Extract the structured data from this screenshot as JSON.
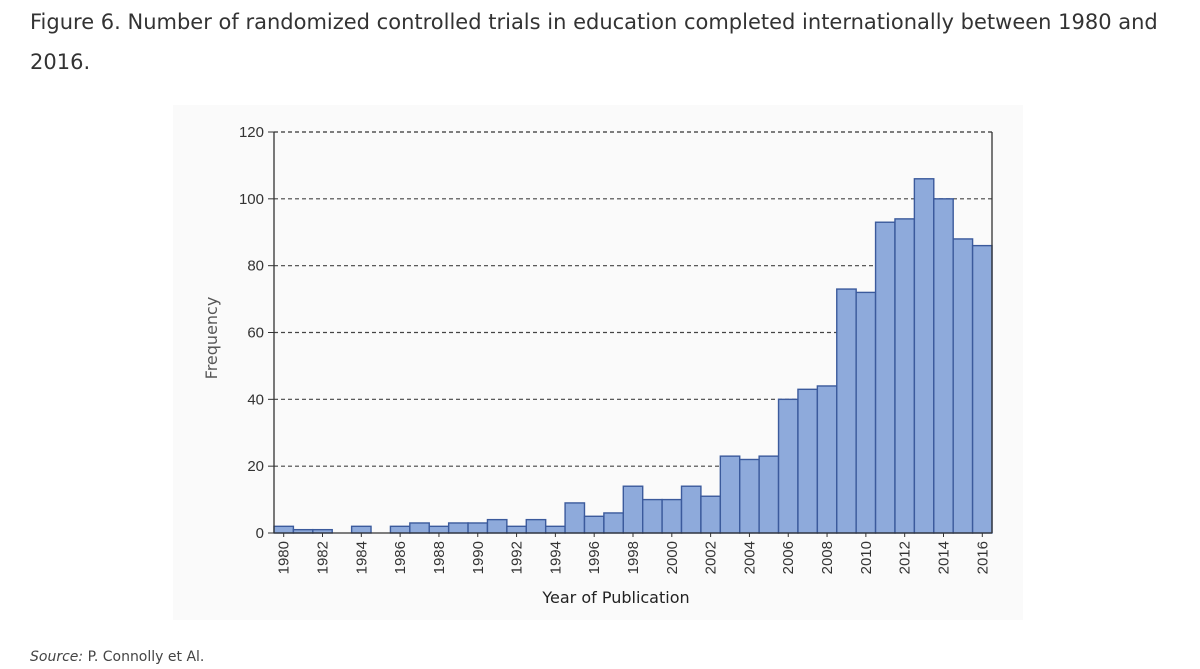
{
  "caption": "Figure 6. Number of randomized controlled trials in education completed internationally between 1980 and 2016.",
  "source": {
    "label": "Source:",
    "text": "P. Connolly et Al."
  },
  "colors": {
    "bar_fill": "#8eaadb",
    "bar_stroke": "#3b5a9c",
    "grid": "#444444",
    "axis": "#333333",
    "panel": "#fafafa"
  },
  "chart_data": {
    "type": "bar",
    "title": "",
    "xlabel": "Year of Publication",
    "ylabel": "Frequency",
    "ylim": [
      0,
      120
    ],
    "yticks": [
      0,
      20,
      40,
      60,
      80,
      100,
      120
    ],
    "grid": true,
    "categories": [
      "1980",
      "1981",
      "1982",
      "1983",
      "1984",
      "1985",
      "1986",
      "1987",
      "1988",
      "1989",
      "1990",
      "1991",
      "1992",
      "1993",
      "1994",
      "1995",
      "1996",
      "1997",
      "1998",
      "1999",
      "2000",
      "2001",
      "2002",
      "2003",
      "2004",
      "2005",
      "2006",
      "2007",
      "2008",
      "2009",
      "2010",
      "2011",
      "2012",
      "2013",
      "2014",
      "2015",
      "2016"
    ],
    "tick_labels": [
      "1980",
      "1982",
      "1984",
      "1986",
      "1988",
      "1990",
      "1992",
      "1994",
      "1996",
      "1998",
      "2000",
      "2002",
      "2004",
      "2006",
      "2008",
      "2010",
      "2012",
      "2014",
      "2016"
    ],
    "values": [
      2,
      1,
      1,
      0,
      2,
      0,
      2,
      3,
      2,
      3,
      3,
      4,
      2,
      4,
      2,
      9,
      5,
      6,
      14,
      10,
      10,
      14,
      11,
      23,
      22,
      23,
      40,
      43,
      44,
      73,
      72,
      93,
      94,
      106,
      100,
      88,
      86
    ]
  }
}
